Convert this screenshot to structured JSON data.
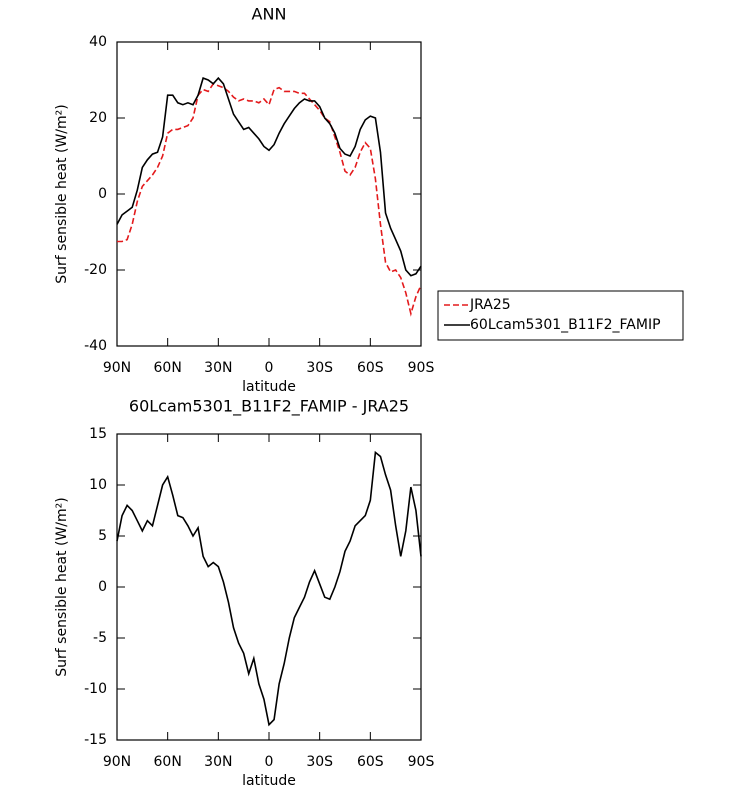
{
  "chart_data": [
    {
      "type": "line",
      "title": "ANN",
      "xlabel": "latitude",
      "ylabel": "Surf sensible heat (W/m²)",
      "x": [
        90,
        87,
        84,
        81,
        78,
        75,
        72,
        69,
        66,
        63,
        60,
        57,
        54,
        51,
        48,
        45,
        42,
        39,
        36,
        33,
        30,
        27,
        24,
        21,
        18,
        15,
        12,
        9,
        6,
        3,
        0,
        -3,
        -6,
        -9,
        -12,
        -15,
        -18,
        -21,
        -24,
        -27,
        -30,
        -33,
        -36,
        -39,
        -42,
        -45,
        -48,
        -51,
        -54,
        -57,
        -60,
        -63,
        -66,
        -69,
        -72,
        -75,
        -78,
        -81,
        -84,
        -87,
        -90
      ],
      "xlim": [
        90,
        -90
      ],
      "xticks": [
        {
          "value": 90,
          "label": "90N"
        },
        {
          "value": 60,
          "label": "60N"
        },
        {
          "value": 30,
          "label": "30N"
        },
        0,
        {
          "value": -30,
          "label": "30S"
        },
        {
          "value": -60,
          "label": "60S"
        },
        {
          "value": -90,
          "label": "90S"
        }
      ],
      "ylim": [
        -40,
        40
      ],
      "yticks": [
        -40,
        -20,
        0,
        20,
        40
      ],
      "legend": "outside-right",
      "series": [
        {
          "name": "JRA25",
          "color": "#e31a1c",
          "dash": true,
          "values": [
            -12.5,
            -12.5,
            -12,
            -8,
            -2,
            2,
            3.5,
            5,
            7,
            10,
            16,
            17,
            17,
            17.5,
            18,
            20,
            26,
            27.5,
            27,
            29,
            28.5,
            28,
            27,
            25.5,
            24.5,
            25,
            24.5,
            24.5,
            24,
            25,
            23.5,
            27.5,
            28,
            27,
            27,
            27,
            26.5,
            26.5,
            25,
            23.5,
            22,
            20,
            19,
            15,
            11,
            6,
            5,
            7,
            11,
            13.5,
            12,
            4,
            -8,
            -18,
            -20.5,
            -20,
            -22,
            -26,
            -31.5,
            -27,
            -24
          ]
        },
        {
          "name": "60Lcam5301_B11F2_FAMIP",
          "color": "#000000",
          "values": [
            -8,
            -5.5,
            -4.5,
            -3.5,
            1,
            7,
            9,
            10.5,
            11,
            15,
            26,
            26,
            24,
            23.5,
            24,
            23.5,
            26,
            30.5,
            30,
            29,
            30.5,
            29,
            25,
            21,
            19,
            17,
            17.5,
            16,
            14.5,
            12.5,
            11.5,
            13,
            16,
            18.5,
            20.5,
            22.5,
            24,
            25,
            24.5,
            24.5,
            23,
            20,
            18.5,
            16,
            12,
            10.5,
            10,
            12.5,
            17,
            19.5,
            20.5,
            20,
            11,
            -5,
            -9,
            -12,
            -15,
            -20,
            -21.5,
            -21,
            -19
          ]
        }
      ]
    },
    {
      "type": "line",
      "title": "60Lcam5301_B11F2_FAMIP - JRA25",
      "xlabel": "latitude",
      "ylabel": "Surf sensible heat (W/m²)",
      "x": [
        90,
        87,
        84,
        81,
        78,
        75,
        72,
        69,
        66,
        63,
        60,
        57,
        54,
        51,
        48,
        45,
        42,
        39,
        36,
        33,
        30,
        27,
        24,
        21,
        18,
        15,
        12,
        9,
        6,
        3,
        0,
        -3,
        -6,
        -9,
        -12,
        -15,
        -18,
        -21,
        -24,
        -27,
        -30,
        -33,
        -36,
        -39,
        -42,
        -45,
        -48,
        -51,
        -54,
        -57,
        -60,
        -63,
        -66,
        -69,
        -72,
        -75,
        -78,
        -81,
        -84,
        -87,
        -90
      ],
      "xlim": [
        90,
        -90
      ],
      "xticks": [
        {
          "value": 90,
          "label": "90N"
        },
        {
          "value": 60,
          "label": "60N"
        },
        {
          "value": 30,
          "label": "30N"
        },
        0,
        {
          "value": -30,
          "label": "30S"
        },
        {
          "value": -60,
          "label": "60S"
        },
        {
          "value": -90,
          "label": "90S"
        }
      ],
      "ylim": [
        -15,
        15
      ],
      "yticks": [
        -15,
        -10,
        -5,
        0,
        5,
        10,
        15
      ],
      "series": [
        {
          "color": "#000000",
          "values": [
            4.5,
            7,
            8,
            7.5,
            6.5,
            5.5,
            6.5,
            6,
            8,
            10,
            10.8,
            9,
            7,
            6.8,
            6,
            5,
            5.8,
            3,
            2,
            2.4,
            2,
            0.5,
            -1.5,
            -4,
            -5.5,
            -6.5,
            -8.5,
            -7,
            -9.5,
            -11,
            -13.5,
            -13,
            -9.5,
            -7.5,
            -5,
            -3,
            -2,
            -1,
            0.5,
            1.6,
            0.3,
            -1,
            -1.2,
            0,
            1.5,
            3.5,
            4.5,
            6,
            6.5,
            7,
            8.5,
            13.2,
            12.8,
            11,
            9.5,
            6,
            3,
            5.5,
            9.8,
            7.5,
            3
          ]
        }
      ]
    }
  ]
}
